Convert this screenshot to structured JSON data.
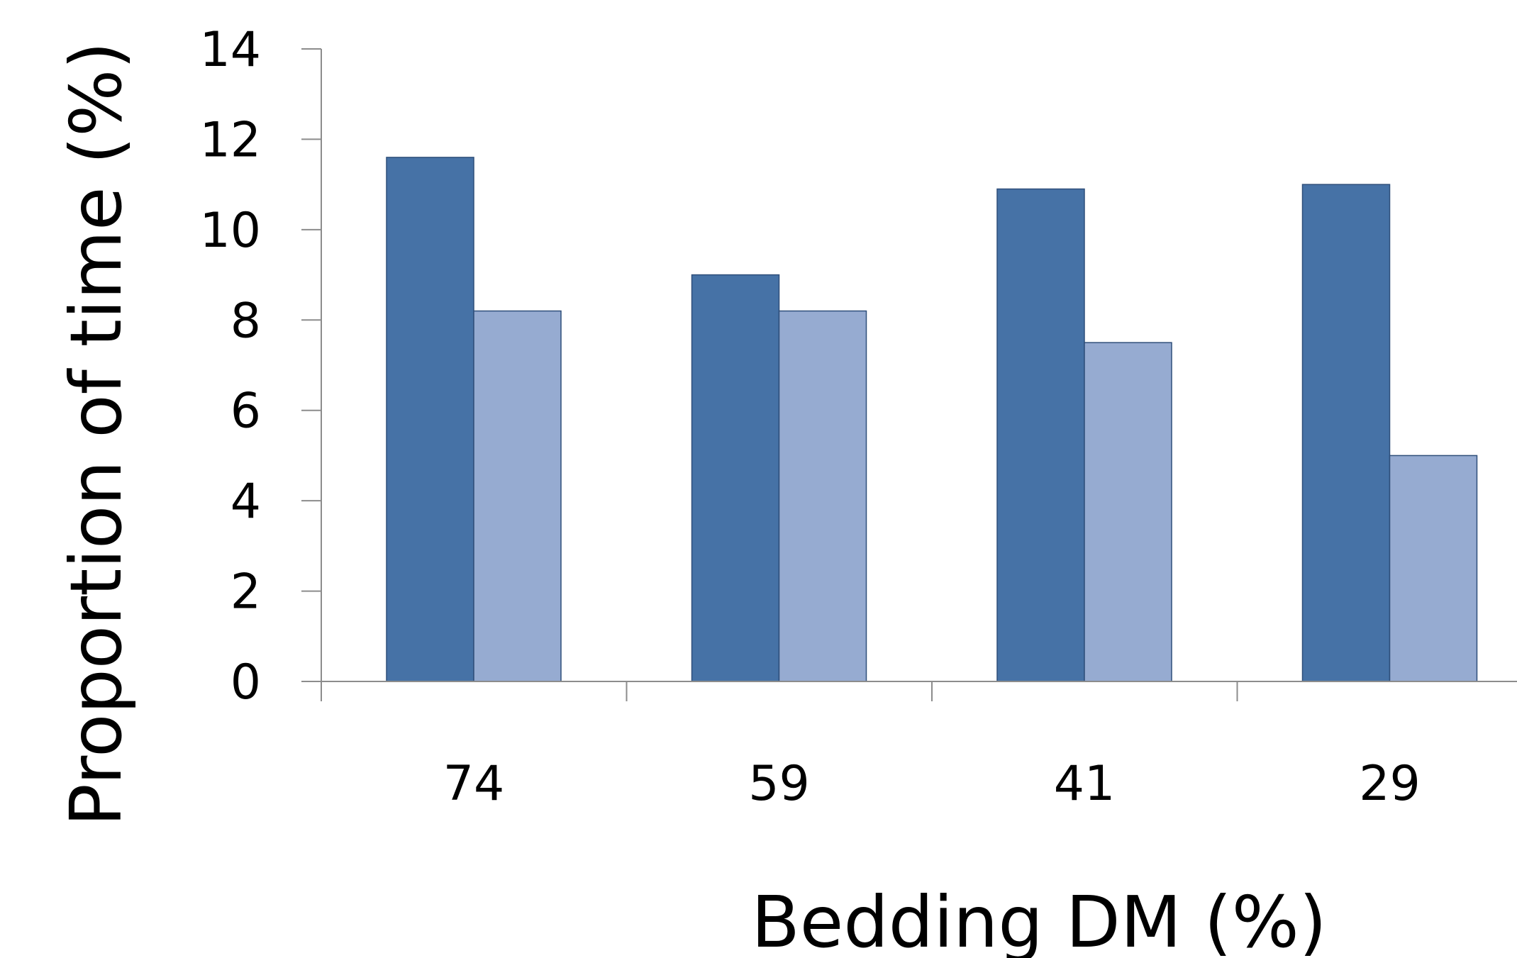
{
  "chart_data": {
    "type": "bar",
    "title": "",
    "xlabel": "Bedding DM (%)",
    "ylabel": "Proportion of time (%)",
    "categories": [
      "74",
      "59",
      "41",
      "29"
    ],
    "series": [
      {
        "values": [
          11.6,
          9.0,
          10.9,
          11.0
        ],
        "color": "#4672a6"
      },
      {
        "values": [
          8.2,
          8.2,
          7.5,
          5.0
        ],
        "color": "#96abd1"
      }
    ],
    "ylim": [
      0,
      14
    ],
    "yticks": [
      0,
      2,
      4,
      6,
      8,
      10,
      12,
      14
    ],
    "grid": false,
    "legend": "none",
    "bar_stroke": "#2f4f7a",
    "axis_color": "#8c8c8c"
  }
}
